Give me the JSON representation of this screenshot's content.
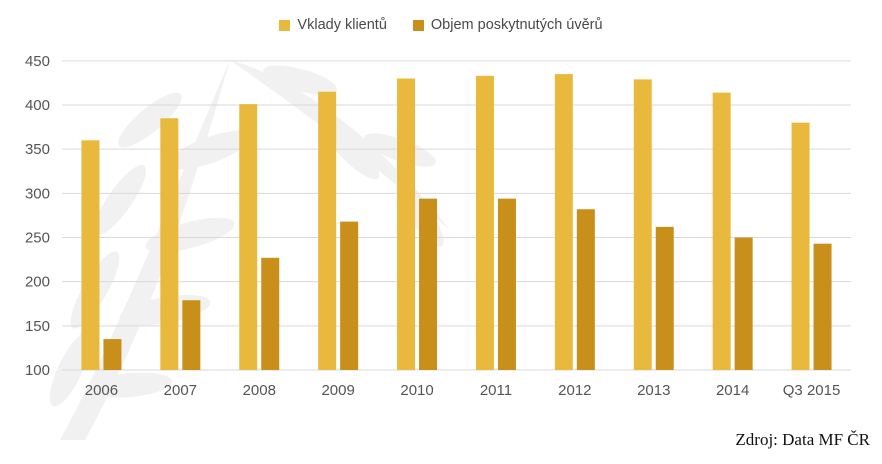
{
  "chart_data": {
    "type": "bar",
    "categories": [
      "2006",
      "2007",
      "2008",
      "2009",
      "2010",
      "2011",
      "2012",
      "2013",
      "2014",
      "Q3 2015"
    ],
    "series": [
      {
        "name": "Vklady klientů",
        "color": "#e9b93d",
        "values": [
          360,
          385,
          401,
          415,
          430,
          433,
          435,
          429,
          414,
          380
        ]
      },
      {
        "name": "Objem poskytnutých úvěrů",
        "color": "#c8901a",
        "values": [
          135,
          179,
          227,
          268,
          294,
          294,
          282,
          262,
          250,
          243
        ]
      }
    ],
    "yticks": [
      "100",
      "150",
      "200",
      "250",
      "300",
      "350",
      "400",
      "450"
    ],
    "ylim": [
      100,
      460
    ],
    "grid": true,
    "legend_position": "top-center"
  },
  "source": "Zdroj: Data MF ČR",
  "colors": {
    "gridline": "#d9d9d9",
    "axis_text": "#555555"
  }
}
